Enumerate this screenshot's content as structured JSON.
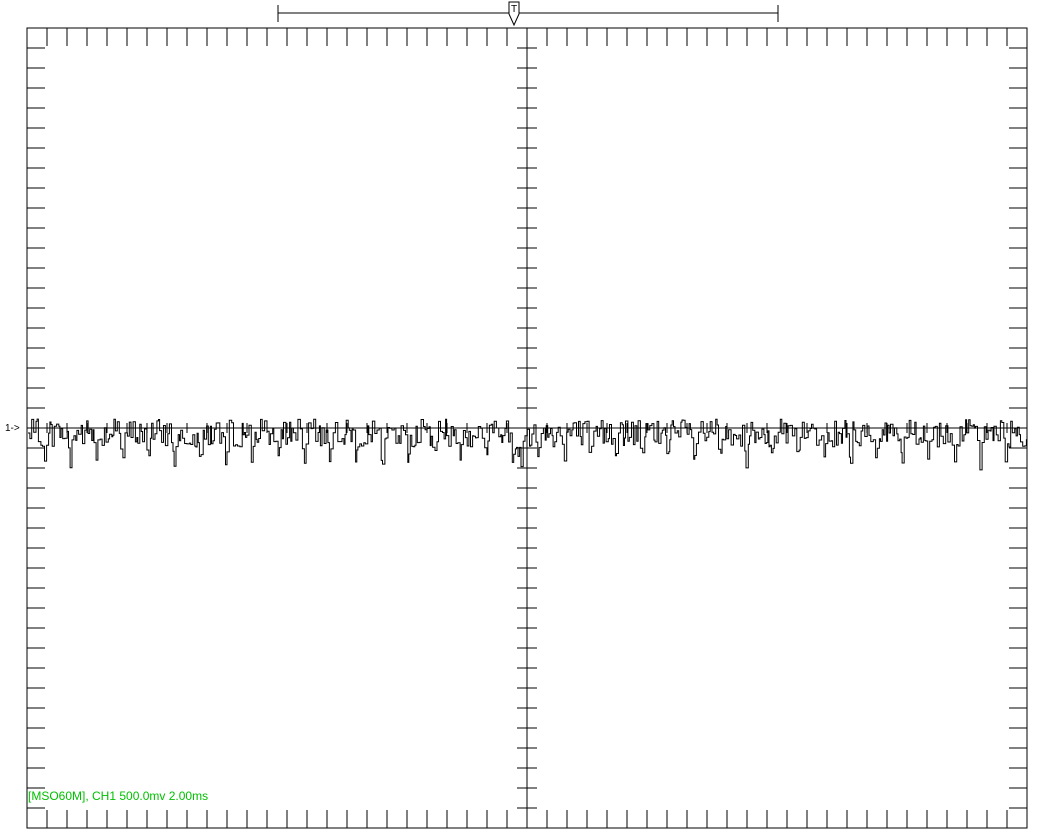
{
  "trigger_marker": "T",
  "channel_marker": "1->",
  "info_text": "[MSO60M], CH1 500.0mv 2.00ms",
  "colors": {
    "background": "#ffffff",
    "grid": "#000000",
    "trace": "#000000",
    "info_text": "#00c000"
  },
  "chart_data": {
    "type": "line",
    "title": "",
    "xlabel": "",
    "ylabel": "",
    "grid": "crosshair-only",
    "x_divisions": 10,
    "y_divisions": 8,
    "channel": "CH1",
    "volts_per_div": "500.0mv",
    "time_per_div": "2.00ms",
    "xlim_ms": [
      0,
      20
    ],
    "ylim_div": [
      -4,
      4
    ],
    "trigger_time_ms": 9.75,
    "trigger_window_ms": [
      5,
      15
    ],
    "ch1_offset_div": 0,
    "series": [
      {
        "name": "CH1",
        "description": "noisy near-flat signal around channel-1 ground level, periodic small negative dips",
        "mean_div": -0.05,
        "peak_div": 0.15,
        "trough_div": -0.45,
        "dip_period_ms": 0.52
      }
    ]
  }
}
